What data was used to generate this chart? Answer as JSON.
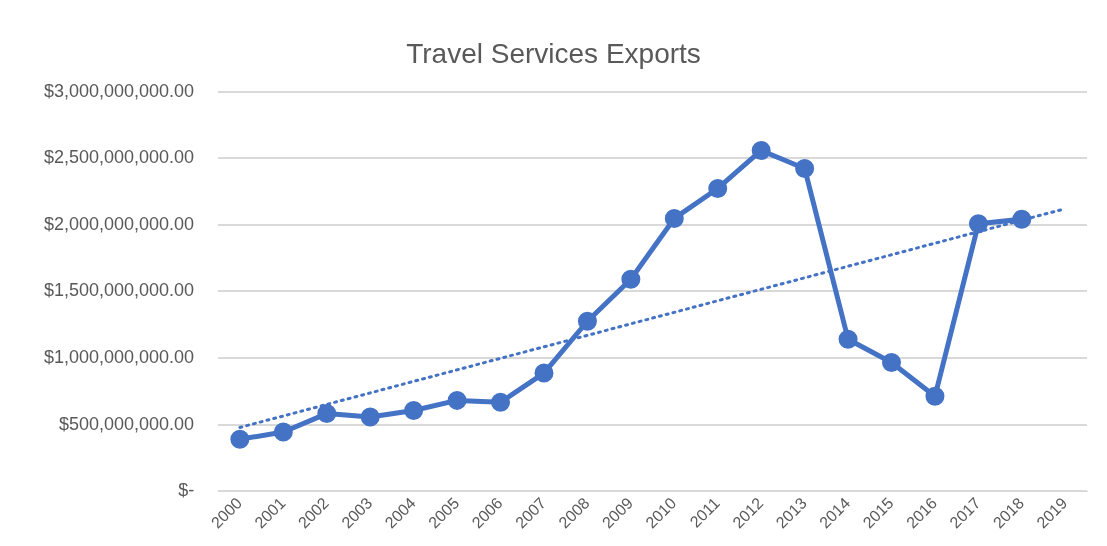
{
  "chart_data": {
    "type": "line",
    "title": "Travel Services Exports",
    "categories": [
      "2000",
      "2001",
      "2002",
      "2003",
      "2004",
      "2005",
      "2006",
      "2007",
      "2008",
      "2009",
      "2010",
      "2011",
      "2012",
      "2013",
      "2014",
      "2015",
      "2016",
      "2017",
      "2018",
      "2019"
    ],
    "series": [
      {
        "color": "#4472c4",
        "marker": "circle",
        "line_style": "solid",
        "values": [
          390000000,
          445000000,
          583000000,
          558000000,
          606000000,
          682000000,
          668000000,
          887000000,
          1276000000,
          1592000000,
          2048000000,
          2273000000,
          2558000000,
          2423000000,
          1141000000,
          966000000,
          713000000,
          2008000000,
          2042000000,
          null
        ]
      },
      {
        "color": "#4472c4",
        "marker": "none",
        "line_style": "dotted",
        "values": [
          479000000,
          565000000,
          652000000,
          738000000,
          825000000,
          911000000,
          998000000,
          1084000000,
          1170000000,
          1257000000,
          1343000000,
          1430000000,
          1516000000,
          1602000000,
          1689000000,
          1775000000,
          1862000000,
          1948000000,
          2035000000,
          2121000000
        ]
      }
    ],
    "ylim": [
      0,
      3000000000
    ],
    "yticks": [
      {
        "value": 0,
        "label": "$-"
      },
      {
        "value": 500000000,
        "label": "$500,000,000.00"
      },
      {
        "value": 1000000000,
        "label": "$1,000,000,000.00"
      },
      {
        "value": 1500000000,
        "label": "$1,500,000,000.00"
      },
      {
        "value": 2000000000,
        "label": "$2,000,000,000.00"
      },
      {
        "value": 2500000000,
        "label": "$2,500,000,000.00"
      },
      {
        "value": 3000000000,
        "label": "$3,000,000,000.00"
      }
    ],
    "grid": "y",
    "legend": false
  }
}
